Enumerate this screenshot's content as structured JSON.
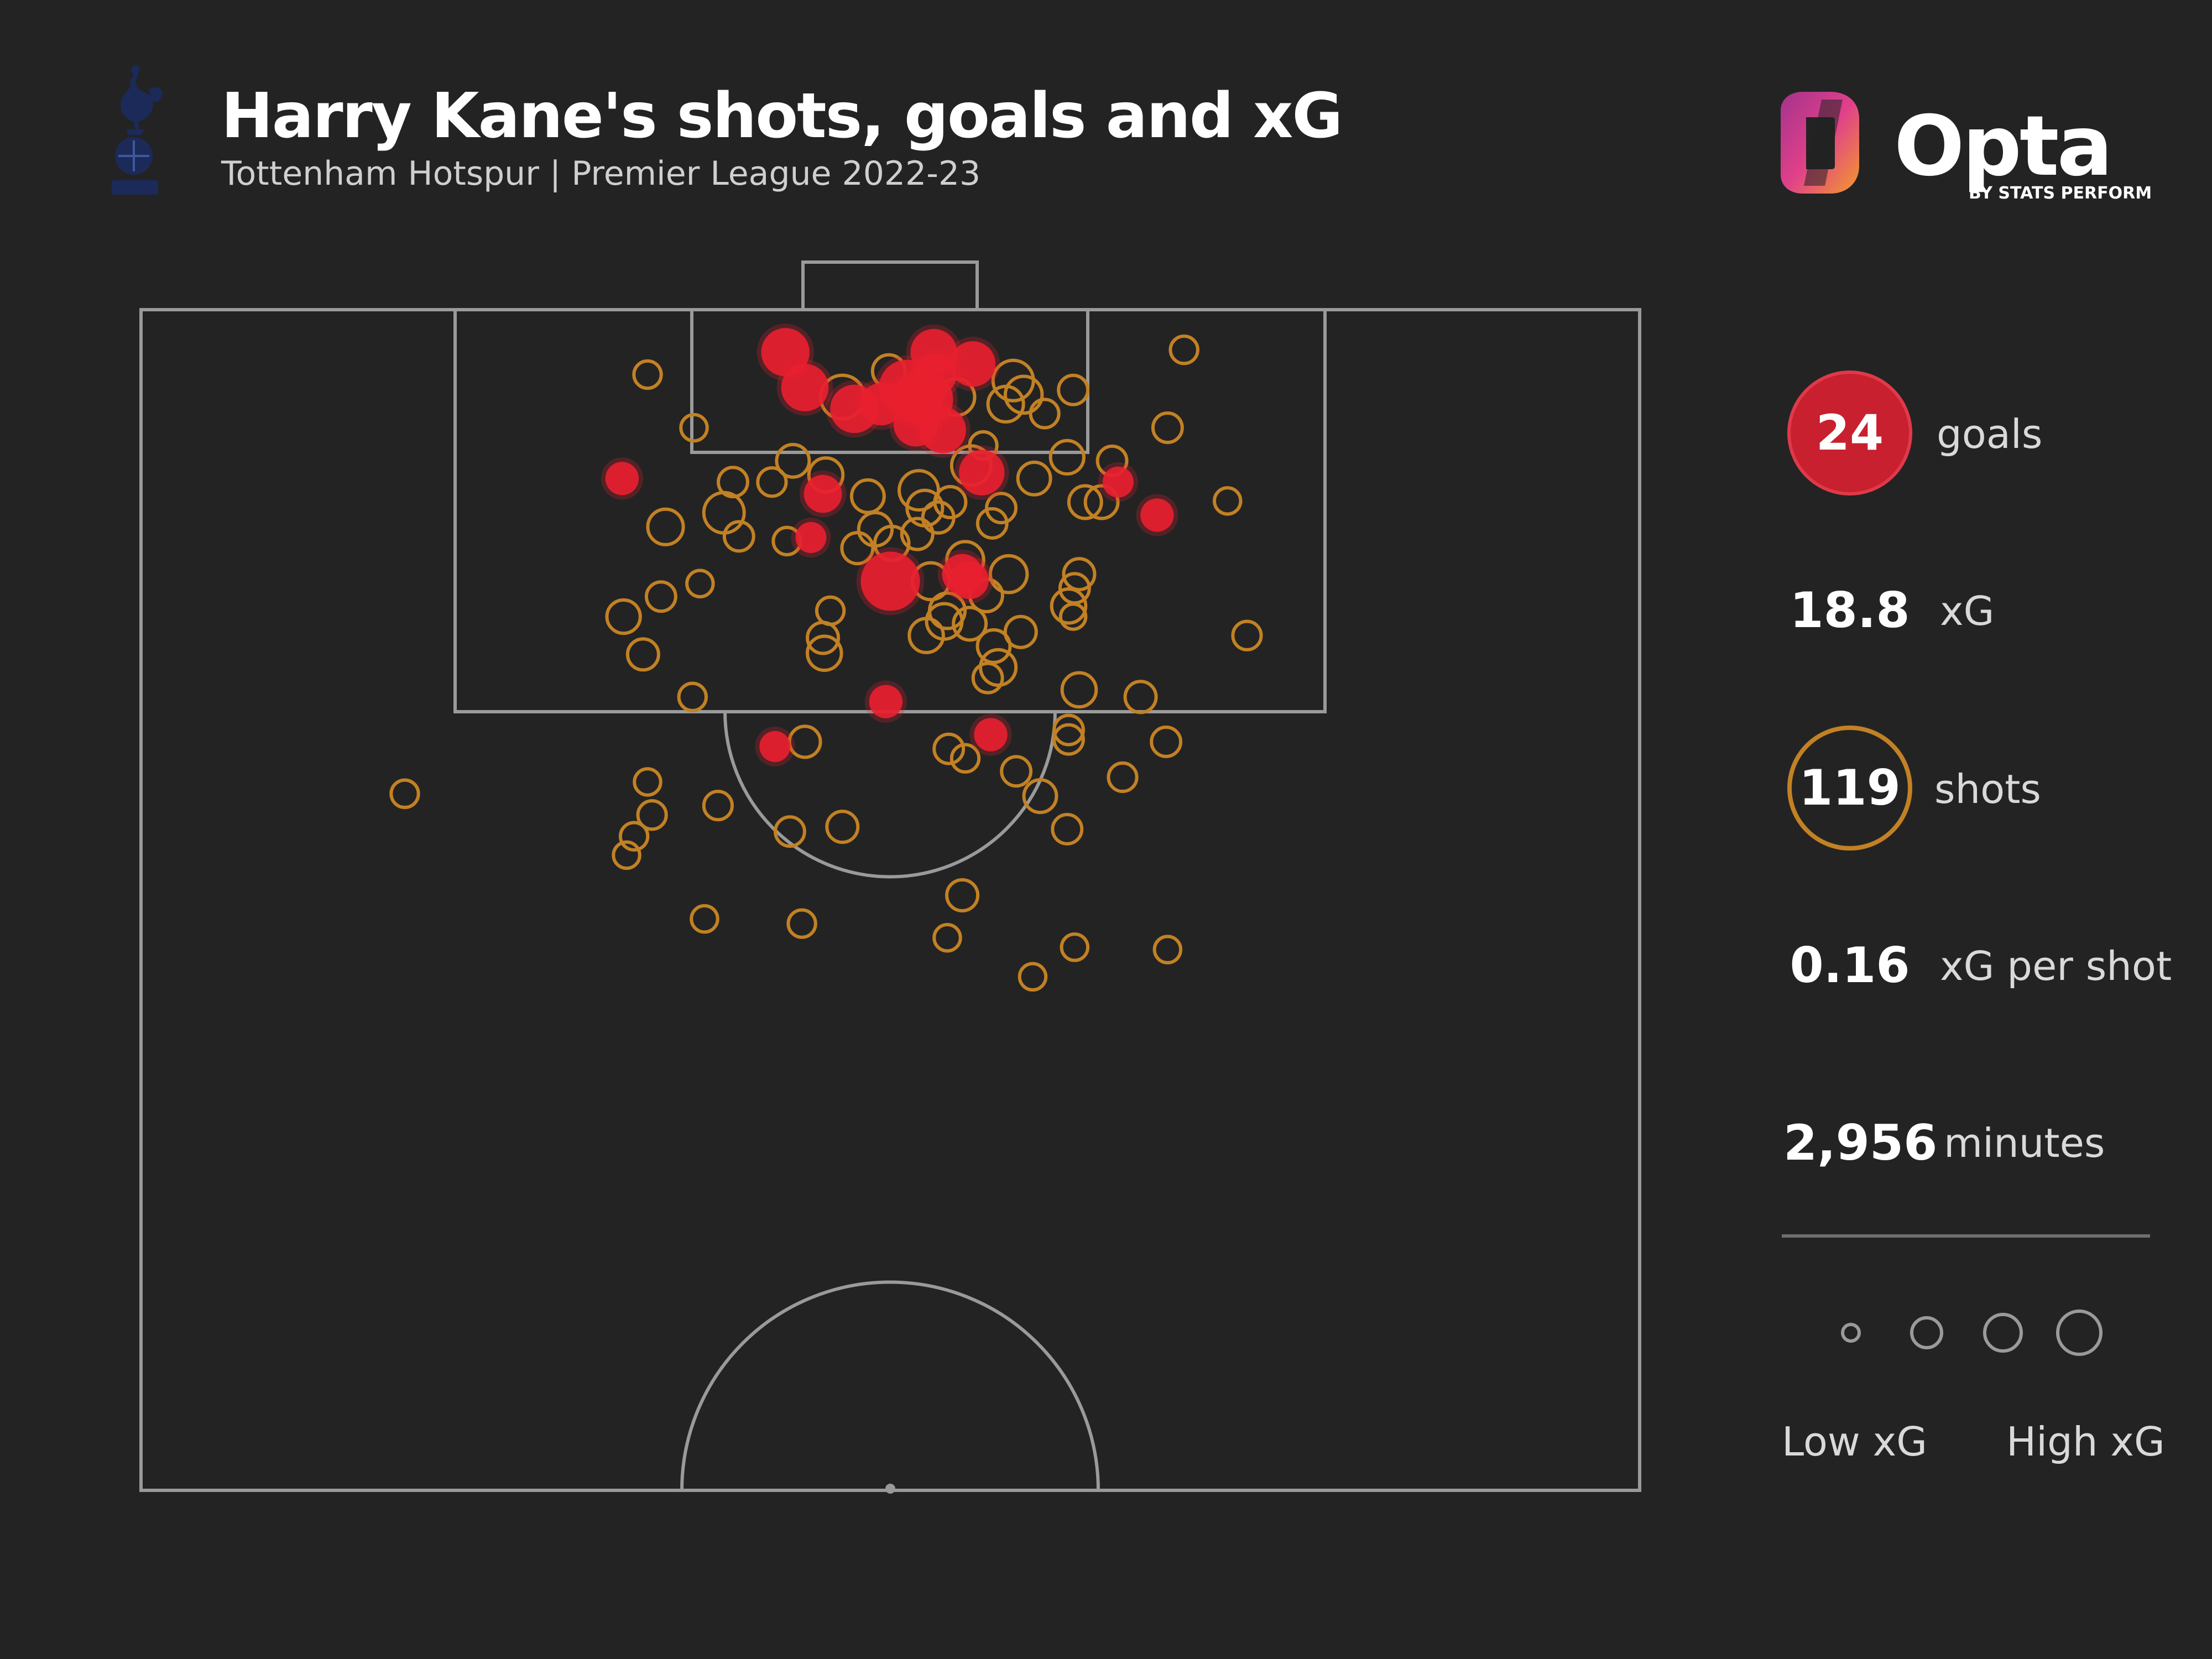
{
  "header": {
    "title": "Harry Kane's shots, goals and xG",
    "subtitle": "Tottenham Hotspur | Premier League 2022-23"
  },
  "brand": {
    "name": "Opta",
    "tagline": "BY STATS PERFORM"
  },
  "crest": {
    "icon": "cockerel-crest-icon"
  },
  "stats": {
    "goals": {
      "value": "24",
      "label": "goals"
    },
    "xg": {
      "value": "18.8",
      "label": "xG"
    },
    "shots": {
      "value": "119",
      "label": "shots"
    },
    "xg_per_shot": {
      "value": "0.16",
      "label": "xG per shot"
    },
    "minutes": {
      "value": "2,956",
      "label": "minutes"
    }
  },
  "legend": {
    "low": "Low xG",
    "high": "High xG"
  },
  "colors": {
    "background": "#232323",
    "goal": "#e8202f",
    "shot": "#c28124",
    "pitch_lines": "#9a9a9a"
  },
  "chart_data": {
    "type": "scatter",
    "description_units": "pitch coordinates: x across pitch width 0-100 (left to right), y distance from goal line 0-100 (half pitch length)",
    "xlim": [
      0,
      100
    ],
    "ylim": [
      0,
      100
    ],
    "series": [
      {
        "name": "goals",
        "points": [
          [
            43.0,
            3.6,
            0.42
          ],
          [
            52.9,
            3.6,
            0.38
          ],
          [
            55.5,
            4.6,
            0.36
          ],
          [
            44.3,
            6.6,
            0.4
          ],
          [
            51.1,
            6.6,
            0.6
          ],
          [
            47.6,
            8.4,
            0.42
          ],
          [
            52.4,
            7.6,
            0.55
          ],
          [
            51.7,
            9.7,
            0.34
          ],
          [
            53.5,
            10.2,
            0.38
          ],
          [
            56.1,
            13.8,
            0.36
          ],
          [
            32.1,
            14.3,
            0.15
          ],
          [
            45.5,
            15.6,
            0.22
          ],
          [
            65.2,
            14.6,
            0.12
          ],
          [
            67.8,
            17.4,
            0.15
          ],
          [
            44.7,
            19.3,
            0.12
          ],
          [
            50.0,
            23.0,
            0.7
          ],
          [
            54.8,
            22.4,
            0.26
          ],
          [
            55.3,
            22.9,
            0.22
          ],
          [
            49.7,
            33.2,
            0.15
          ],
          [
            42.3,
            37.0,
            0.12
          ],
          [
            56.7,
            36.0,
            0.15
          ],
          [
            51.8,
            7.5,
            0.5
          ],
          [
            53.0,
            5.5,
            0.3
          ],
          [
            49.4,
            8.0,
            0.3
          ]
        ]
      },
      {
        "name": "shots",
        "points": [
          [
            33.8,
            5.5,
            0.08
          ],
          [
            36.9,
            10.0,
            0.07
          ],
          [
            46.8,
            7.4,
            0.32
          ],
          [
            51.6,
            8.0,
            0.18
          ],
          [
            54.4,
            7.4,
            0.2
          ],
          [
            58.2,
            6.0,
            0.26
          ],
          [
            58.9,
            7.2,
            0.2
          ],
          [
            57.7,
            8.0,
            0.18
          ],
          [
            62.2,
            6.8,
            0.1
          ],
          [
            69.6,
            3.4,
            0.08
          ],
          [
            68.5,
            10.0,
            0.1
          ],
          [
            43.5,
            12.8,
            0.14
          ],
          [
            45.7,
            14.0,
            0.16
          ],
          [
            48.5,
            15.8,
            0.14
          ],
          [
            51.9,
            15.3,
            0.24
          ],
          [
            52.3,
            16.8,
            0.18
          ],
          [
            54.0,
            16.3,
            0.12
          ],
          [
            55.4,
            13.2,
            0.24
          ],
          [
            61.8,
            12.5,
            0.15
          ],
          [
            59.6,
            14.3,
            0.14
          ],
          [
            64.8,
            12.8,
            0.1
          ],
          [
            64.1,
            16.3,
            0.14
          ],
          [
            39.5,
            14.6,
            0.1
          ],
          [
            38.9,
            17.2,
            0.26
          ],
          [
            35.0,
            18.4,
            0.18
          ],
          [
            39.9,
            19.2,
            0.1
          ],
          [
            43.1,
            19.6,
            0.08
          ],
          [
            51.8,
            19.0,
            0.12
          ],
          [
            49.0,
            18.6,
            0.15
          ],
          [
            53.2,
            17.6,
            0.12
          ],
          [
            57.4,
            16.8,
            0.1
          ],
          [
            56.8,
            18.1,
            0.1
          ],
          [
            63.0,
            16.3,
            0.14
          ],
          [
            72.5,
            16.2,
            0.07
          ],
          [
            47.8,
            20.2,
            0.12
          ],
          [
            50.1,
            19.8,
            0.16
          ],
          [
            55.0,
            21.2,
            0.2
          ],
          [
            57.9,
            22.4,
            0.2
          ],
          [
            62.6,
            22.4,
            0.12
          ],
          [
            62.3,
            23.6,
            0.1
          ],
          [
            61.9,
            25.1,
            0.16
          ],
          [
            56.4,
            24.2,
            0.14
          ],
          [
            53.8,
            25.5,
            0.18
          ],
          [
            52.7,
            23.0,
            0.2
          ],
          [
            46.0,
            25.5,
            0.08
          ],
          [
            37.3,
            23.2,
            0.07
          ],
          [
            34.7,
            24.3,
            0.1
          ],
          [
            32.2,
            26.0,
            0.15
          ],
          [
            33.5,
            29.2,
            0.12
          ],
          [
            45.5,
            27.8,
            0.12
          ],
          [
            45.6,
            29.1,
            0.16
          ],
          [
            52.4,
            27.6,
            0.16
          ],
          [
            53.6,
            26.4,
            0.18
          ],
          [
            55.3,
            26.6,
            0.14
          ],
          [
            56.9,
            28.5,
            0.14
          ],
          [
            58.7,
            27.3,
            0.12
          ],
          [
            57.2,
            30.3,
            0.18
          ],
          [
            56.5,
            31.2,
            0.1
          ],
          [
            62.2,
            26.0,
            0.06
          ],
          [
            73.8,
            27.6,
            0.09
          ],
          [
            36.8,
            32.8,
            0.08
          ],
          [
            62.6,
            32.2,
            0.16
          ],
          [
            66.7,
            32.8,
            0.12
          ],
          [
            44.3,
            36.6,
            0.12
          ],
          [
            53.9,
            37.2,
            0.1
          ],
          [
            55.0,
            38.0,
            0.08
          ],
          [
            61.9,
            35.6,
            0.1
          ],
          [
            61.9,
            36.4,
            0.1
          ],
          [
            68.4,
            36.6,
            0.1
          ],
          [
            58.4,
            39.1,
            0.1
          ],
          [
            65.5,
            39.6,
            0.09
          ],
          [
            17.6,
            41.0,
            0.08
          ],
          [
            33.8,
            40.0,
            0.07
          ],
          [
            34.1,
            42.8,
            0.09
          ],
          [
            38.5,
            42.0,
            0.09
          ],
          [
            43.3,
            44.2,
            0.1
          ],
          [
            46.8,
            43.8,
            0.12
          ],
          [
            60.0,
            41.2,
            0.14
          ],
          [
            61.8,
            44.0,
            0.1
          ],
          [
            32.9,
            44.6,
            0.08
          ],
          [
            32.4,
            46.2,
            0.07
          ],
          [
            54.8,
            49.6,
            0.12
          ],
          [
            37.6,
            51.6,
            0.07
          ],
          [
            44.1,
            52.0,
            0.08
          ],
          [
            53.8,
            53.2,
            0.07
          ],
          [
            59.5,
            56.5,
            0.07
          ],
          [
            62.3,
            54.0,
            0.07
          ],
          [
            68.5,
            54.2,
            0.07
          ],
          [
            49.9,
            5.2,
            0.14
          ],
          [
            56.2,
            11.5,
            0.08
          ],
          [
            60.3,
            8.8,
            0.09
          ],
          [
            42.1,
            14.6,
            0.09
          ]
        ]
      }
    ],
    "legend_sizes": [
      0.05,
      0.15,
      0.3,
      0.5
    ]
  }
}
